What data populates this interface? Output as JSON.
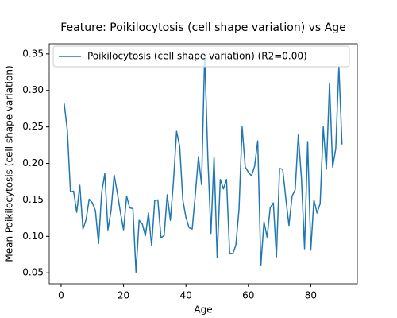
{
  "chart_data": {
    "type": "line",
    "title": "Feature: Poikilocytosis (cell shape variation) vs Age",
    "x_label": "Age",
    "y_label": "Mean Poikilocytosis (cell shape variation)",
    "x": [
      1,
      2,
      3,
      4,
      5,
      6,
      7,
      8,
      9,
      10,
      11,
      12,
      13,
      14,
      15,
      16,
      17,
      18,
      19,
      20,
      21,
      22,
      23,
      24,
      25,
      26,
      27,
      28,
      29,
      30,
      31,
      32,
      33,
      34,
      35,
      36,
      37,
      38,
      39,
      40,
      41,
      42,
      43,
      44,
      45,
      46,
      47,
      48,
      49,
      50,
      51,
      52,
      53,
      54,
      55,
      56,
      57,
      58,
      59,
      60,
      61,
      62,
      63,
      64,
      65,
      66,
      67,
      68,
      69,
      70,
      71,
      72,
      73,
      74,
      75,
      76,
      77,
      78,
      79,
      80,
      81,
      82,
      83,
      84,
      85,
      86,
      87,
      88,
      89,
      90
    ],
    "series": [
      {
        "name": "Poikilocytosis (cell shape variation) (R2=0.00)",
        "color": "#1f77b4",
        "values": [
          0.282,
          0.245,
          0.161,
          0.162,
          0.133,
          0.17,
          0.11,
          0.123,
          0.151,
          0.146,
          0.135,
          0.09,
          0.16,
          0.186,
          0.109,
          0.135,
          0.184,
          0.16,
          0.133,
          0.109,
          0.155,
          0.139,
          0.138,
          0.051,
          0.122,
          0.117,
          0.101,
          0.132,
          0.087,
          0.149,
          0.15,
          0.098,
          0.101,
          0.157,
          0.122,
          0.175,
          0.244,
          0.223,
          0.15,
          0.126,
          0.112,
          0.11,
          0.157,
          0.209,
          0.171,
          0.35,
          0.21,
          0.104,
          0.209,
          0.071,
          0.178,
          0.165,
          0.178,
          0.077,
          0.076,
          0.088,
          0.137,
          0.25,
          0.195,
          0.188,
          0.183,
          0.196,
          0.231,
          0.06,
          0.12,
          0.099,
          0.139,
          0.146,
          0.072,
          0.193,
          0.192,
          0.152,
          0.115,
          0.155,
          0.164,
          0.239,
          0.18,
          0.083,
          0.23,
          0.081,
          0.15,
          0.132,
          0.145,
          0.25,
          0.192,
          0.31,
          0.195,
          0.22,
          0.333,
          0.226
        ]
      }
    ],
    "xlim": [
      -3.8,
      94.9
    ],
    "ylim": [
      0.035,
      0.364
    ],
    "xticks": [
      0,
      20,
      40,
      60,
      80
    ],
    "yticks": [
      0.05,
      {
        "value": 0.1,
        "label": "0.10"
      },
      0.15,
      {
        "value": 0.2,
        "label": "0.20"
      },
      0.25,
      {
        "value": 0.3,
        "label": "0.30"
      },
      0.35
    ],
    "grid": false,
    "legend": "upper left"
  }
}
